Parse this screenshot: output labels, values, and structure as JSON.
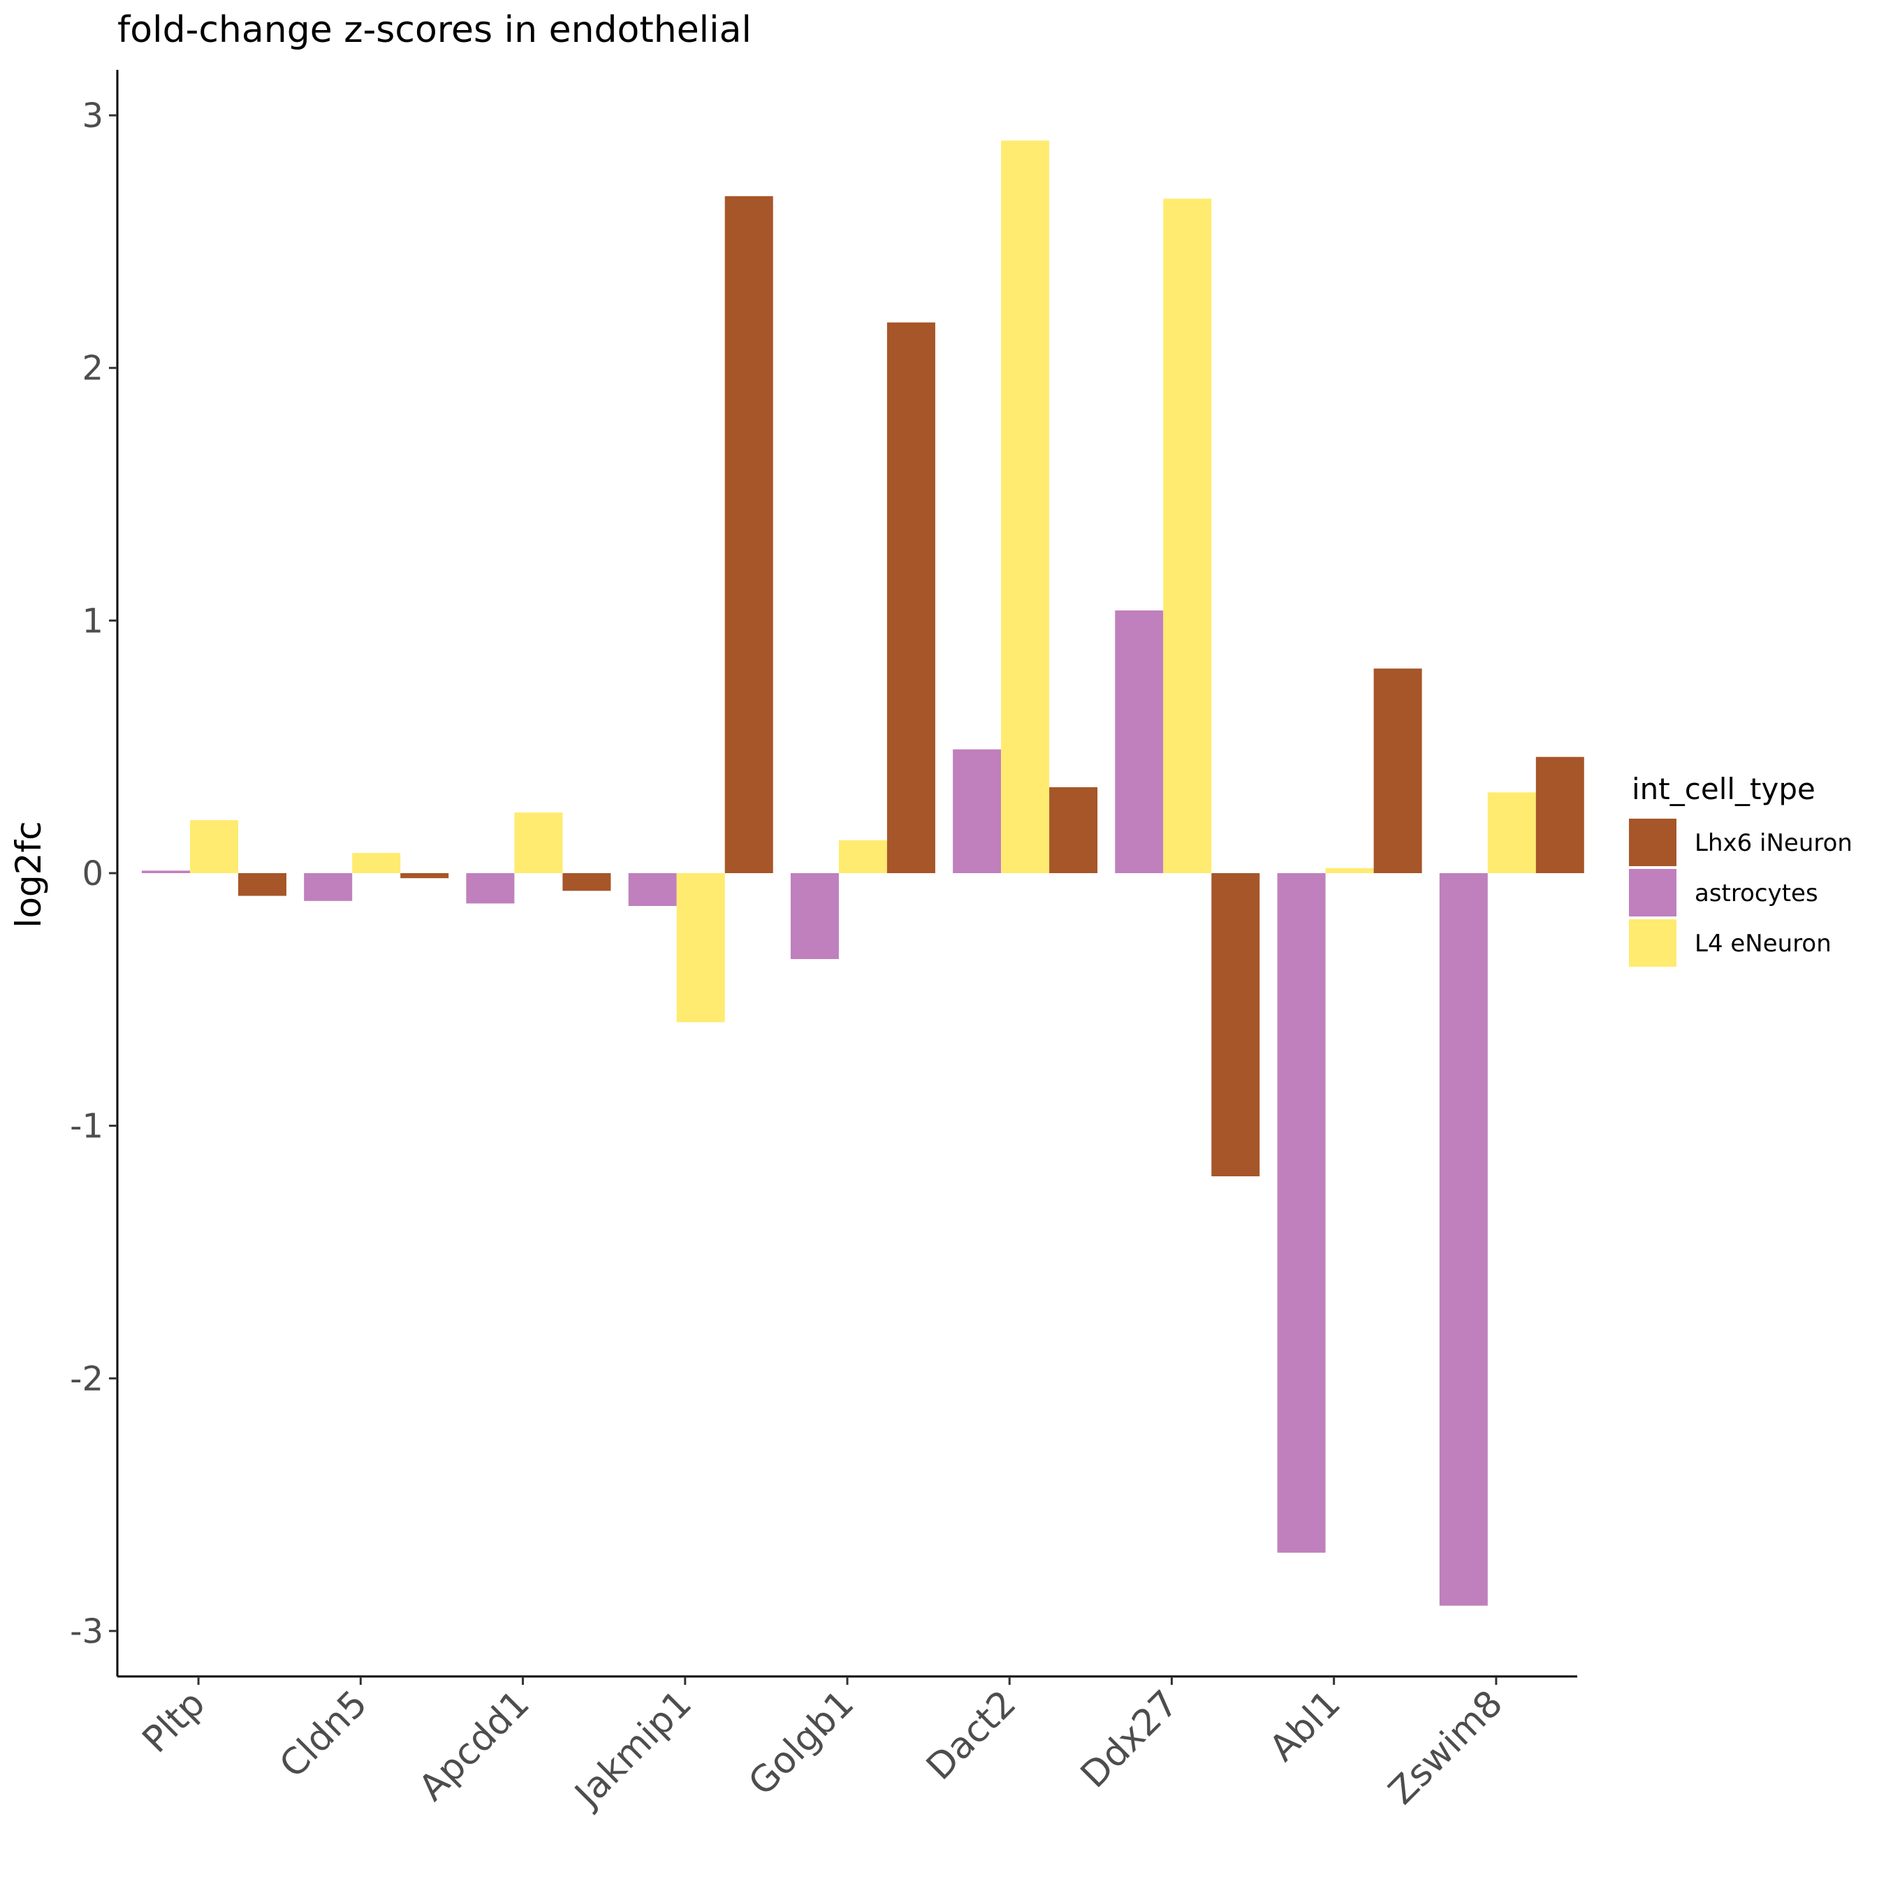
{
  "chart_data": {
    "type": "bar",
    "title": "fold-change z-scores in endothelial",
    "ylabel": "log2fc",
    "xlabel": "",
    "ylim": [
      -3.18,
      3.18
    ],
    "y_ticks": [
      3,
      2,
      1,
      0,
      -1,
      -2,
      -3
    ],
    "y_tick_labels": [
      "3",
      "2",
      "1",
      "0",
      "-1",
      "-2",
      "-3"
    ],
    "grid": false,
    "categories": [
      "Pltp",
      "Cldn5",
      "Apcdd1",
      "Jakmip1",
      "Golgb1",
      "Dact2",
      "Ddx27",
      "Abl1",
      "Zswim8"
    ],
    "legend": {
      "title": "int_cell_type",
      "position": "right"
    },
    "bar_groups": [
      {
        "category": "Pltp",
        "bars": [
          {
            "series": "astrocytes",
            "value": 0.01
          },
          {
            "series": "L4 eNeuron",
            "value": 0.21
          },
          {
            "series": "Lhx6 iNeuron",
            "value": -0.09
          }
        ]
      },
      {
        "category": "Cldn5",
        "bars": [
          {
            "series": "astrocytes",
            "value": -0.11
          },
          {
            "series": "L4 eNeuron",
            "value": 0.08
          },
          {
            "series": "Lhx6 iNeuron",
            "value": -0.02
          }
        ]
      },
      {
        "category": "Apcdd1",
        "bars": [
          {
            "series": "astrocytes",
            "value": -0.12
          },
          {
            "series": "L4 eNeuron",
            "value": 0.24
          },
          {
            "series": "Lhx6 iNeuron",
            "value": -0.07
          }
        ]
      },
      {
        "category": "Jakmip1",
        "bars": [
          {
            "series": "astrocytes",
            "value": -0.13
          },
          {
            "series": "L4 eNeuron",
            "value": -0.59
          },
          {
            "series": "Lhx6 iNeuron",
            "value": 2.68
          }
        ]
      },
      {
        "category": "Golgb1",
        "bars": [
          {
            "series": "astrocytes",
            "value": -0.34
          },
          {
            "series": "L4 eNeuron",
            "value": 0.13
          },
          {
            "series": "Lhx6 iNeuron",
            "value": 2.18
          }
        ]
      },
      {
        "category": "Dact2",
        "bars": [
          {
            "series": "astrocytes",
            "value": 0.49
          },
          {
            "series": "L4 eNeuron",
            "value": 2.9
          },
          {
            "series": "Lhx6 iNeuron",
            "value": 0.34
          }
        ]
      },
      {
        "category": "Ddx27",
        "bars": [
          {
            "series": "astrocytes",
            "value": 1.04
          },
          {
            "series": "L4 eNeuron",
            "value": 2.67
          },
          {
            "series": "Lhx6 iNeuron",
            "value": -1.2
          }
        ]
      },
      {
        "category": "Abl1",
        "bars": [
          {
            "series": "astrocytes",
            "value": -2.69
          },
          {
            "series": "L4 eNeuron",
            "value": 0.02
          },
          {
            "series": "Lhx6 iNeuron",
            "value": 0.81
          }
        ]
      },
      {
        "category": "Zswim8",
        "bars": [
          {
            "series": "astrocytes",
            "value": -2.9
          },
          {
            "series": "L4 eNeuron",
            "value": 0.32
          },
          {
            "series": "Lhx6 iNeuron",
            "value": 0.46
          }
        ]
      }
    ],
    "series": [
      {
        "name": "Lhx6 iNeuron",
        "color": "#a65628"
      },
      {
        "name": "astrocytes",
        "color": "#bf80bd"
      },
      {
        "name": "L4 eNeuron",
        "color": "#ffeb70"
      }
    ]
  }
}
